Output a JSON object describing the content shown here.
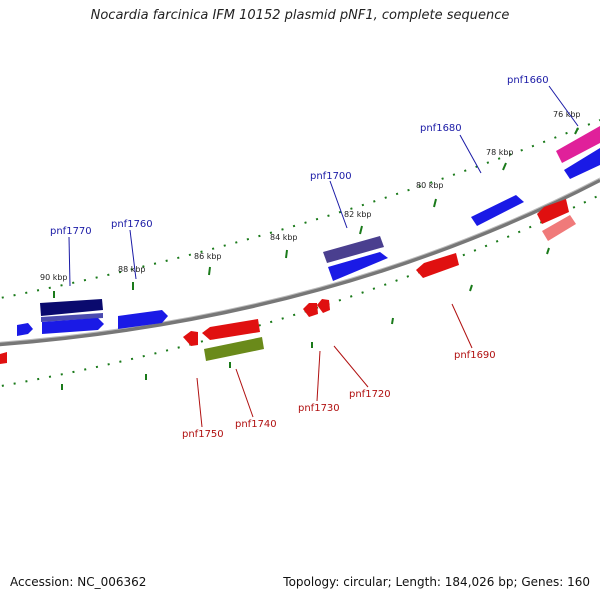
{
  "title": "Nocardia farcinica IFM 10152 plasmid pNF1, complete sequence",
  "footer": {
    "accession": "Accession: NC_006362",
    "summary": "Topology: circular; Length: 184,026 bp; Genes: 160"
  },
  "colors": {
    "backbone": "#888888",
    "tick": "#1a7a1a",
    "forward_label": "#1a1aa6",
    "reverse_label": "#b01010"
  },
  "ticks": [
    {
      "label": "90 kbp"
    },
    {
      "label": "88 kbp"
    },
    {
      "label": "86 kbp"
    },
    {
      "label": "84 kbp"
    },
    {
      "label": "82 kbp"
    },
    {
      "label": "80 kbp"
    },
    {
      "label": "78 kbp"
    },
    {
      "label": "76 kbp"
    }
  ],
  "gene_labels": [
    {
      "name": "pnf1770",
      "strand": "forward"
    },
    {
      "name": "pnf1760",
      "strand": "forward"
    },
    {
      "name": "pnf1700",
      "strand": "forward"
    },
    {
      "name": "pnf1680",
      "strand": "forward"
    },
    {
      "name": "pnf1660",
      "strand": "forward"
    },
    {
      "name": "pnf1750",
      "strand": "reverse"
    },
    {
      "name": "pnf1740",
      "strand": "reverse"
    },
    {
      "name": "pnf1730",
      "strand": "reverse"
    },
    {
      "name": "pnf1720",
      "strand": "reverse"
    },
    {
      "name": "pnf1690",
      "strand": "reverse"
    }
  ]
}
